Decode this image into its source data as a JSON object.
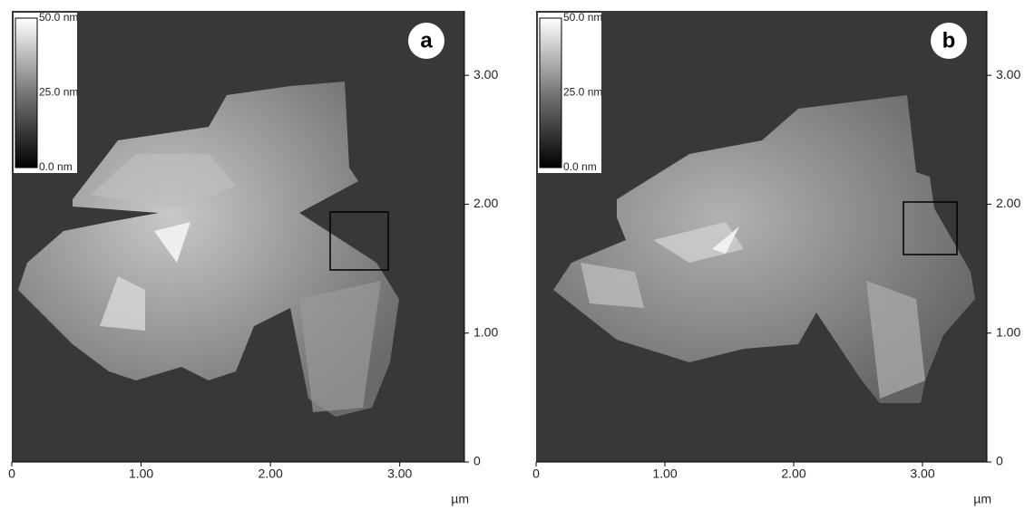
{
  "panels": [
    {
      "label": "a",
      "unit": "µm",
      "xlim": [
        0,
        3.5
      ],
      "ylim": [
        0,
        3.5
      ],
      "xticks": [
        0,
        {
          "value": 1,
          "label": "1.00"
        },
        {
          "value": 2,
          "label": "2.00"
        },
        {
          "value": 3,
          "label": "3.00"
        }
      ],
      "yticks": [
        0,
        {
          "value": 1,
          "label": "1.00"
        },
        {
          "value": 2,
          "label": "2.00"
        },
        {
          "value": 3,
          "label": "3.00"
        }
      ],
      "colorbar": [
        "50.0 nm",
        "25.0 nm",
        "0.0 nm"
      ]
    },
    {
      "label": "b",
      "unit": "µm",
      "xlim": [
        0,
        3.5
      ],
      "ylim": [
        0,
        3.5
      ],
      "xticks": [
        0,
        {
          "value": 1,
          "label": "1.00"
        },
        {
          "value": 2,
          "label": "2.00"
        },
        {
          "value": 3,
          "label": "3.00"
        }
      ],
      "yticks": [
        0,
        {
          "value": 1,
          "label": "1.00"
        },
        {
          "value": 2,
          "label": "2.00"
        },
        {
          "value": 3,
          "label": "3.00"
        }
      ],
      "colorbar": [
        "50.0 nm",
        "25.0 nm",
        "0.0 nm"
      ]
    }
  ]
}
